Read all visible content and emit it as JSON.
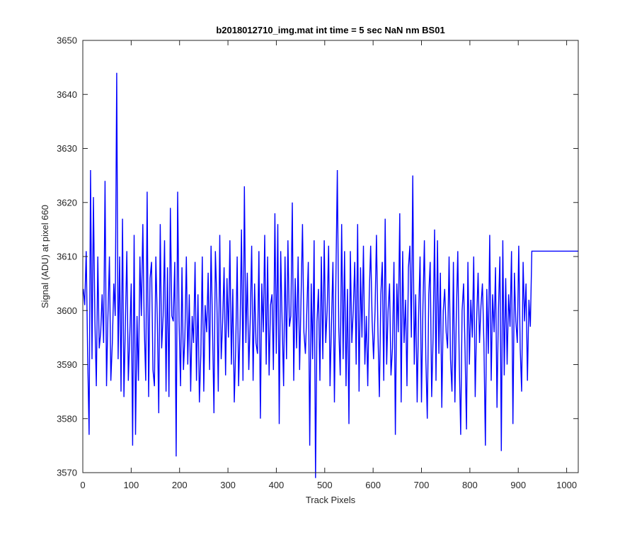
{
  "chart_data": {
    "type": "line",
    "title": "b2018012710_img.mat int time = 5 sec  NaN nm BS01",
    "xlabel": "Track Pixels",
    "ylabel": "Signal (ADU) at pixel 660",
    "xlim": [
      0,
      1024
    ],
    "ylim": [
      3570,
      3650
    ],
    "xticks": [
      0,
      100,
      200,
      300,
      400,
      500,
      600,
      700,
      800,
      900,
      1000
    ],
    "yticks": [
      3570,
      3580,
      3590,
      3600,
      3610,
      3620,
      3630,
      3640,
      3650
    ],
    "grid": false,
    "series": [
      {
        "color": "#0000ff",
        "x_start": 1,
        "x_step": 3,
        "values": [
          3604,
          3601,
          3611,
          3592,
          3577,
          3626,
          3591,
          3621,
          3598,
          3586,
          3610,
          3593,
          3596,
          3603,
          3594,
          3624,
          3586,
          3599,
          3610,
          3587,
          3594,
          3605,
          3599,
          3644,
          3591,
          3610,
          3585,
          3617,
          3584,
          3598,
          3611,
          3587,
          3595,
          3605,
          3575,
          3614,
          3577,
          3599,
          3587,
          3610,
          3599,
          3616,
          3597,
          3587,
          3622,
          3584,
          3606,
          3609,
          3589,
          3586,
          3610,
          3598,
          3581,
          3616,
          3593,
          3599,
          3613,
          3585,
          3608,
          3584,
          3619,
          3599,
          3598,
          3609,
          3573,
          3622,
          3598,
          3586,
          3608,
          3589,
          3595,
          3610,
          3590,
          3603,
          3585,
          3599,
          3594,
          3609,
          3587,
          3603,
          3583,
          3592,
          3610,
          3585,
          3601,
          3596,
          3607,
          3589,
          3612,
          3597,
          3581,
          3611,
          3602,
          3585,
          3614,
          3591,
          3598,
          3608,
          3588,
          3606,
          3595,
          3613,
          3590,
          3604,
          3583,
          3593,
          3610,
          3586,
          3597,
          3615,
          3587,
          3623,
          3594,
          3607,
          3589,
          3598,
          3612,
          3587,
          3605,
          3594,
          3592,
          3611,
          3580,
          3605,
          3596,
          3614,
          3590,
          3610,
          3588,
          3601,
          3603,
          3589,
          3618,
          3592,
          3616,
          3579,
          3611,
          3598,
          3586,
          3610,
          3591,
          3613,
          3597,
          3599,
          3620,
          3587,
          3606,
          3593,
          3610,
          3589,
          3602,
          3616,
          3596,
          3592,
          3600,
          3609,
          3575,
          3605,
          3591,
          3613,
          3569,
          3598,
          3604,
          3587,
          3610,
          3591,
          3613,
          3594,
          3600,
          3612,
          3586,
          3598,
          3609,
          3583,
          3605,
          3626,
          3597,
          3588,
          3616,
          3591,
          3611,
          3586,
          3604,
          3579,
          3611,
          3594,
          3600,
          3609,
          3590,
          3616,
          3585,
          3608,
          3595,
          3612,
          3590,
          3599,
          3586,
          3603,
          3612,
          3598,
          3591,
          3600,
          3614,
          3596,
          3584,
          3603,
          3609,
          3587,
          3617,
          3590,
          3600,
          3605,
          3588,
          3593,
          3609,
          3577,
          3605,
          3596,
          3618,
          3583,
          3611,
          3594,
          3602,
          3586,
          3608,
          3612,
          3595,
          3625,
          3590,
          3603,
          3583,
          3599,
          3610,
          3583,
          3601,
          3613,
          3591,
          3580,
          3603,
          3609,
          3584,
          3595,
          3615,
          3587,
          3613,
          3592,
          3607,
          3582,
          3600,
          3604,
          3596,
          3593,
          3610,
          3591,
          3585,
          3609,
          3583,
          3599,
          3611,
          3591,
          3577,
          3600,
          3605,
          3593,
          3578,
          3609,
          3590,
          3602,
          3595,
          3610,
          3584,
          3598,
          3607,
          3594,
          3601,
          3605,
          3594,
          3575,
          3604,
          3592,
          3614,
          3587,
          3603,
          3596,
          3608,
          3582,
          3600,
          3610,
          3574,
          3613,
          3588,
          3606,
          3590,
          3603,
          3597,
          3611,
          3579,
          3607,
          3598,
          3594,
          3612,
          3593,
          3585,
          3609,
          3598,
          3605,
          3587,
          3602,
          3597,
          3611
        ]
      }
    ]
  }
}
